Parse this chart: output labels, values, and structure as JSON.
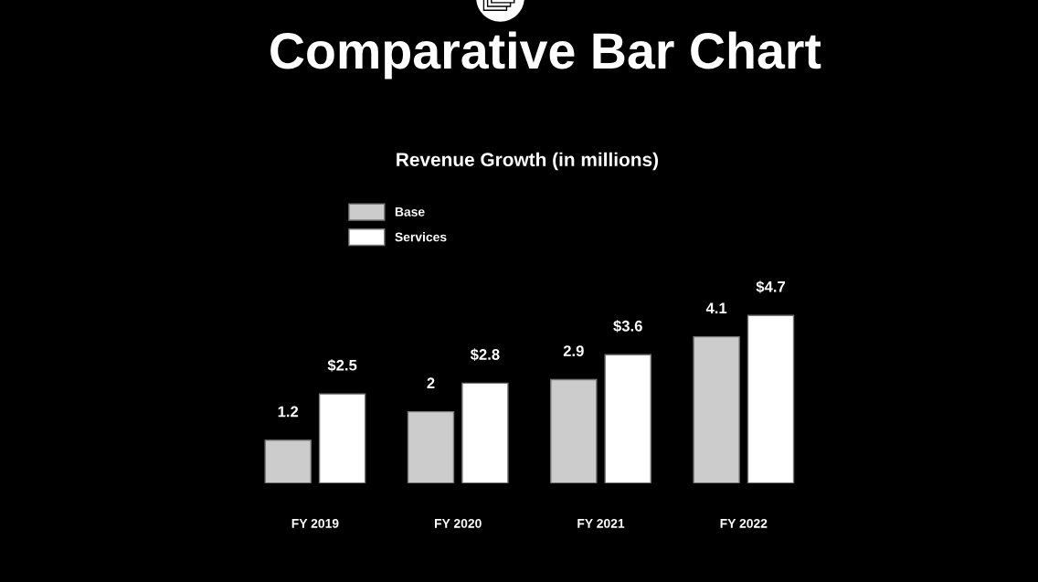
{
  "chart_data": {
    "type": "bar",
    "title": "Comparative Bar Chart",
    "subtitle": "Revenue Growth (in millions)",
    "categories": [
      "FY 2019",
      "FY 2020",
      "FY 2021",
      "FY 2022"
    ],
    "series": [
      {
        "name": "Base",
        "color": "#cccccc",
        "values": [
          1.2,
          2,
          2.9,
          4.1
        ],
        "value_labels": [
          "1.2",
          "2",
          "2.9",
          "4.1"
        ]
      },
      {
        "name": "Services",
        "color": "#ffffff",
        "values": [
          2.5,
          2.8,
          3.6,
          4.7
        ],
        "value_labels": [
          "$2.5",
          "$2.8",
          "$3.6",
          "$4.7"
        ]
      }
    ],
    "legend": "top left",
    "grid": false
  }
}
